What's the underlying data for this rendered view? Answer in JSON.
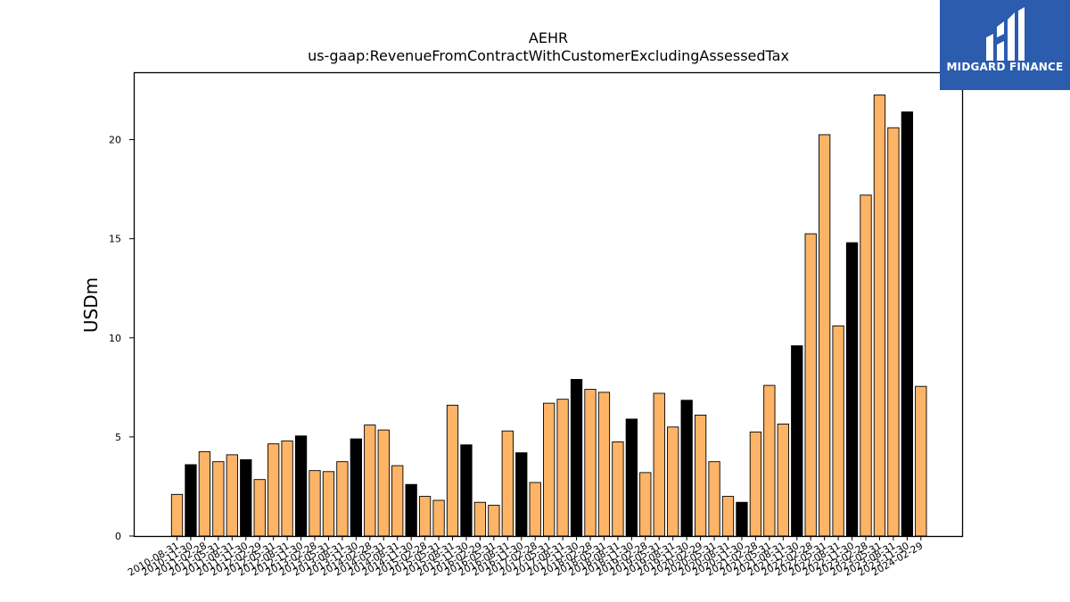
{
  "chart_data": {
    "type": "bar",
    "title": "AEHR",
    "subtitle": "us-gaap:RevenueFromContractWithCustomerExcludingAssessedTax",
    "xlabel": "",
    "ylabel": "USDm",
    "ylim": [
      0,
      23.4
    ],
    "yticks": [
      0,
      5,
      10,
      15,
      20
    ],
    "grid": false,
    "categories": [
      "2010-08-31",
      "2010-11-30",
      "2011-02-28",
      "2011-05-31",
      "2011-08-31",
      "2011-11-30",
      "2012-02-29",
      "2012-05-31",
      "2012-08-31",
      "2012-11-30",
      "2013-02-28",
      "2013-05-31",
      "2013-08-31",
      "2013-11-30",
      "2014-02-28",
      "2014-05-31",
      "2014-08-31",
      "2014-11-30",
      "2015-02-28",
      "2015-05-31",
      "2015-08-31",
      "2015-11-30",
      "2016-02-29",
      "2016-05-31",
      "2016-08-31",
      "2016-11-30",
      "2017-02-28",
      "2017-05-31",
      "2017-08-31",
      "2017-11-30",
      "2018-02-28",
      "2018-05-31",
      "2018-08-31",
      "2018-11-30",
      "2019-02-28",
      "2019-05-31",
      "2019-08-31",
      "2019-11-30",
      "2020-02-29",
      "2020-05-31",
      "2020-08-31",
      "2020-11-30",
      "2021-02-28",
      "2021-05-31",
      "2021-08-31",
      "2021-11-30",
      "2022-02-28",
      "2022-05-31",
      "2022-08-31",
      "2022-11-30",
      "2023-02-28",
      "2023-05-31",
      "2023-08-31",
      "2023-11-30",
      "2024-02-29"
    ],
    "values": [
      2.1,
      3.6,
      4.25,
      3.75,
      4.1,
      3.85,
      2.85,
      4.65,
      4.8,
      5.05,
      3.3,
      3.25,
      3.75,
      4.9,
      5.6,
      5.35,
      3.55,
      2.6,
      2.0,
      1.8,
      6.6,
      4.6,
      1.7,
      1.55,
      5.3,
      4.2,
      2.7,
      6.7,
      6.9,
      7.9,
      7.4,
      7.25,
      4.75,
      5.9,
      3.2,
      7.2,
      5.5,
      6.85,
      6.1,
      3.75,
      2.0,
      1.7,
      5.25,
      7.6,
      5.65,
      9.6,
      15.25,
      20.25,
      10.6,
      14.8,
      17.2,
      22.25,
      20.6,
      21.4,
      7.55
    ],
    "highlight_every": 4,
    "colors": {
      "bar": "#fdb466",
      "highlight": "#000000",
      "edge": "#000000"
    }
  },
  "logo": {
    "text": "MIDGARD FINANCE",
    "color": "#2b5cae"
  }
}
